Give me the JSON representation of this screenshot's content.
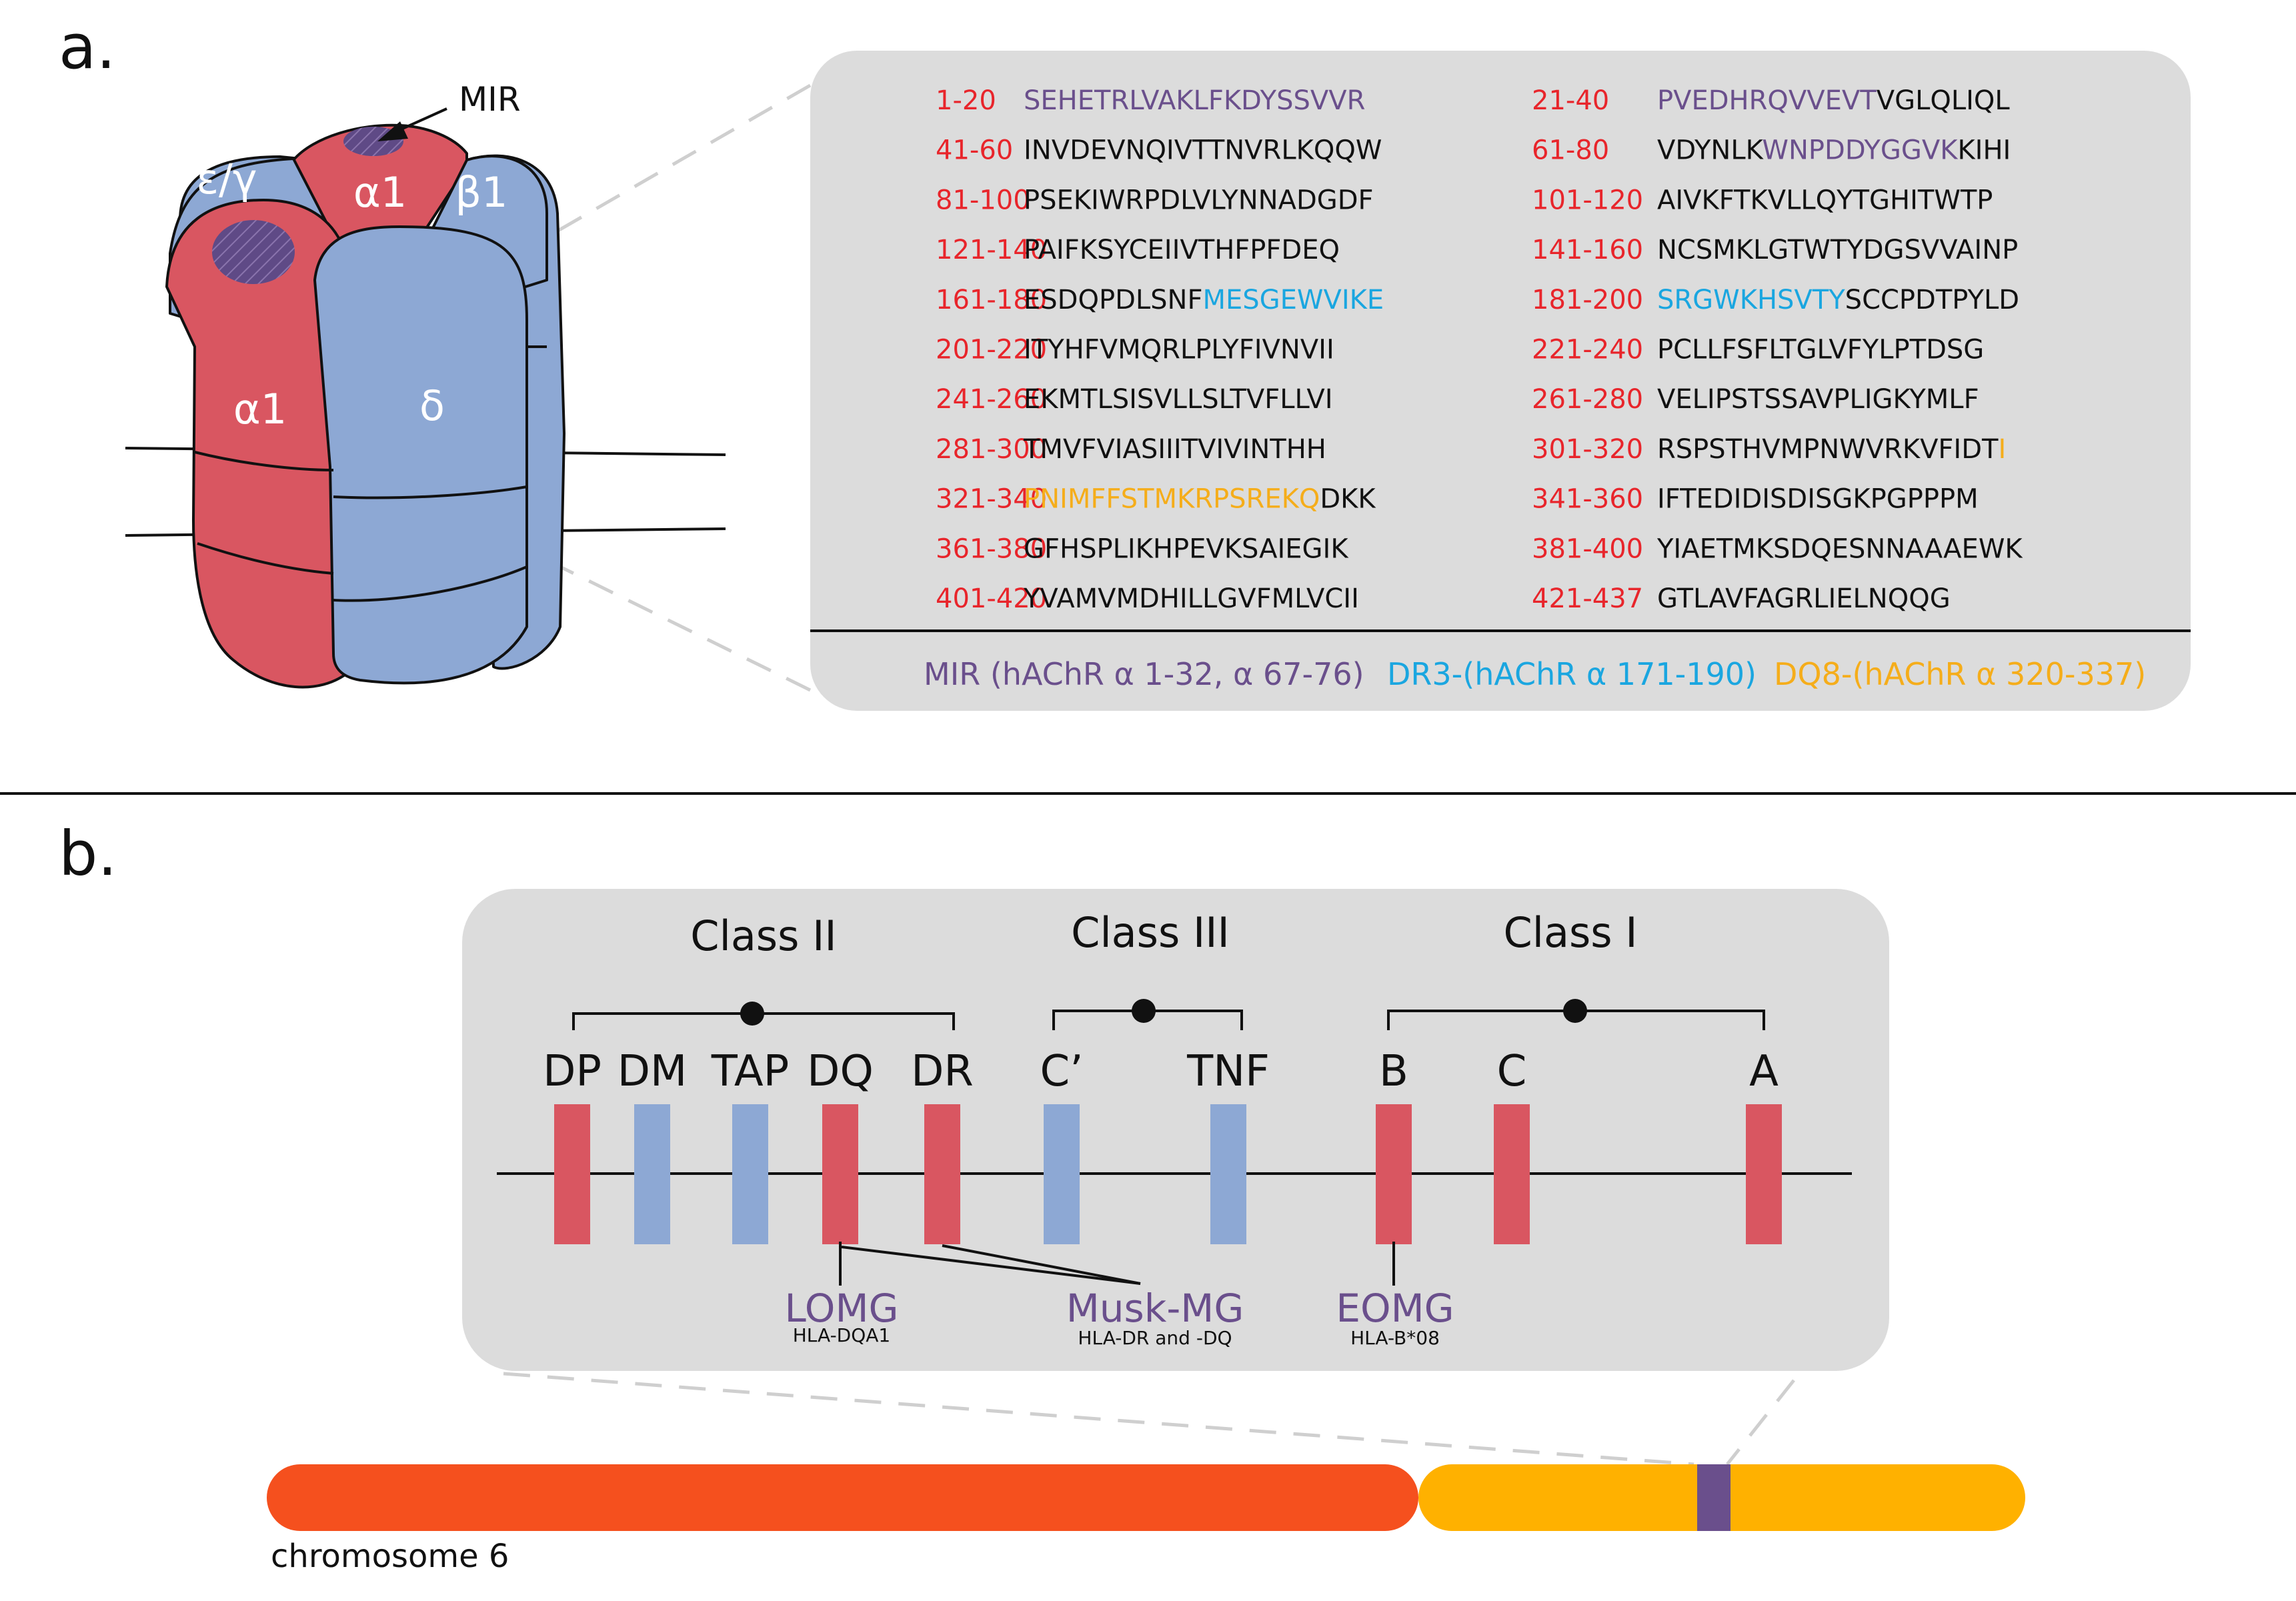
{
  "panel_a": {
    "label": "a.",
    "receptor": {
      "mir_label": "MIR",
      "subunits": [
        "ε/γ",
        "α1",
        "β1",
        "α1",
        "δ"
      ]
    },
    "sequence_rows": [
      {
        "range": "1-20",
        "parts": [
          {
            "t": "SEHETRLVAKLFKDYSSVVR",
            "c": "mir"
          }
        ]
      },
      {
        "range": "21-40",
        "parts": [
          {
            "t": "PVEDHRQVVEVT",
            "c": "mir"
          },
          {
            "t": "VGLQLIQL",
            "c": "plain"
          }
        ]
      },
      {
        "range": "41-60",
        "parts": [
          {
            "t": "INVDEVNQIVTTNVRLKQQW",
            "c": "plain"
          }
        ]
      },
      {
        "range": "61-80",
        "parts": [
          {
            "t": "VDYNLK",
            "c": "plain"
          },
          {
            "t": "WNPDDYGGVK",
            "c": "mir"
          },
          {
            "t": "KIHI",
            "c": "plain"
          }
        ]
      },
      {
        "range": "81-100",
        "parts": [
          {
            "t": "PSEKIWRPDLVLYNNADGDF",
            "c": "plain"
          }
        ]
      },
      {
        "range": "101-120",
        "parts": [
          {
            "t": "AIVKFTKVLLQYTGHITWTP",
            "c": "plain"
          }
        ]
      },
      {
        "range": "121-140",
        "parts": [
          {
            "t": "PAIFKSYCEIIVTHFPFDEQ",
            "c": "plain"
          }
        ]
      },
      {
        "range": "141-160",
        "parts": [
          {
            "t": "NCSMKLGTWTYDGSVVAINP",
            "c": "plain"
          }
        ]
      },
      {
        "range": "161-180",
        "parts": [
          {
            "t": "ESDQPDLSNF",
            "c": "plain"
          },
          {
            "t": "MESGEWVIKE",
            "c": "dr3"
          }
        ]
      },
      {
        "range": "181-200",
        "parts": [
          {
            "t": "SRGWKHSVTY",
            "c": "dr3"
          },
          {
            "t": "SCCPDTPYLD",
            "c": "plain"
          }
        ]
      },
      {
        "range": "201-220",
        "parts": [
          {
            "t": "ITYHFVMQRLPLYFIVNVII",
            "c": "plain"
          }
        ]
      },
      {
        "range": "221-240",
        "parts": [
          {
            "t": "PCLLFSFLTGLVFYLPTDSG",
            "c": "plain"
          }
        ]
      },
      {
        "range": "241-260",
        "parts": [
          {
            "t": "EKMTLSISVLLSLTVFLLVI",
            "c": "plain"
          }
        ]
      },
      {
        "range": "261-280",
        "parts": [
          {
            "t": "VELIPSTSSAVPLIGKYMLF",
            "c": "plain"
          }
        ]
      },
      {
        "range": "281-300",
        "parts": [
          {
            "t": "TMVFVIASIIITVIVINTHH",
            "c": "plain"
          }
        ]
      },
      {
        "range": "301-320",
        "parts": [
          {
            "t": "RSPSTHVMPNWVRKVFIDT",
            "c": "plain"
          },
          {
            "t": "I",
            "c": "dq8"
          }
        ]
      },
      {
        "range": "321-340",
        "parts": [
          {
            "t": "PNIMFFSTMKRPSREKQ",
            "c": "dq8"
          },
          {
            "t": "DKK",
            "c": "plain"
          }
        ]
      },
      {
        "range": "341-360",
        "parts": [
          {
            "t": "IFTEDIDISDISGKPGPPPM",
            "c": "plain"
          }
        ]
      },
      {
        "range": "361-380",
        "parts": [
          {
            "t": "GFHSPLIKHPEVKSAIEGIK",
            "c": "plain"
          }
        ]
      },
      {
        "range": "381-400",
        "parts": [
          {
            "t": "YIAETMKSDQESNNAAAEWK",
            "c": "plain"
          }
        ]
      },
      {
        "range": "401-420",
        "parts": [
          {
            "t": "YVAMVMDHILLGVFMLVCII",
            "c": "plain"
          }
        ]
      },
      {
        "range": "421-437",
        "parts": [
          {
            "t": "GTLAVFAGRLIELNQQG",
            "c": "plain"
          }
        ]
      }
    ],
    "legend": [
      {
        "text": "MIR (hAChR α 1-32, α 67-76)",
        "c": "mir"
      },
      {
        "text": "DR3-(hAChR α 171-190)",
        "c": "dr3"
      },
      {
        "text": "DQ8-(hAChR α 320-337)",
        "c": "dq8"
      }
    ]
  },
  "panel_b": {
    "label": "b.",
    "classes": [
      {
        "name": "Class II"
      },
      {
        "name": "Class III"
      },
      {
        "name": "Class I"
      }
    ],
    "genes": [
      {
        "name": "DP",
        "kind": "red"
      },
      {
        "name": "DM",
        "kind": "blue"
      },
      {
        "name": "TAP",
        "kind": "blue"
      },
      {
        "name": "DQ",
        "kind": "red"
      },
      {
        "name": "DR",
        "kind": "red"
      },
      {
        "name": "C’",
        "kind": "blue"
      },
      {
        "name": "TNF",
        "kind": "blue"
      },
      {
        "name": "B",
        "kind": "red"
      },
      {
        "name": "C",
        "kind": "red"
      },
      {
        "name": "A",
        "kind": "red"
      }
    ],
    "associations": [
      {
        "name": "LOMG",
        "sub": "HLA-DQA1"
      },
      {
        "name": "Musk-MG",
        "sub": "HLA-DR and -DQ"
      },
      {
        "name": "EOMG",
        "sub": "HLA-B*08"
      }
    ],
    "chromosome_label": "chromosome 6"
  },
  "colors": {
    "red_seq": "#e8252b",
    "mir": "#6a4f8c",
    "dr3": "#1aa6e0",
    "dq8": "#f5ad1a",
    "plain": "#111111",
    "panel_bg": "#dcdcdc",
    "gene_red": "#d95661",
    "gene_blue": "#8da8d4",
    "chrom_left": "#f5501e",
    "chrom_right": "#ffb100",
    "chrom_band": "#6a4f8c"
  }
}
